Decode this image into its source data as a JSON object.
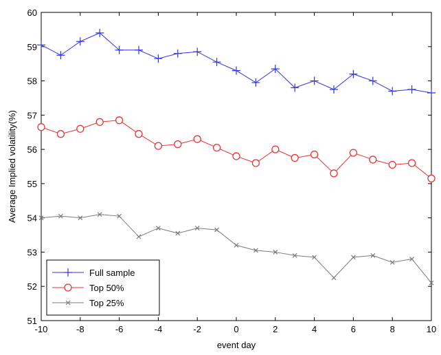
{
  "chart_data": {
    "type": "line",
    "title": "",
    "xlabel": "event day",
    "ylabel": "Average Implied volatility(%)",
    "xlim": [
      -10,
      10
    ],
    "ylim": [
      51,
      60
    ],
    "xticks": [
      -10,
      -8,
      -6,
      -4,
      -2,
      0,
      2,
      4,
      6,
      8,
      10
    ],
    "xtick_labels": [
      "-10",
      "-8",
      "-6",
      "-4",
      "-2",
      "0",
      "2",
      "4",
      "6",
      "8",
      "10"
    ],
    "yticks": [
      51,
      52,
      53,
      54,
      55,
      56,
      57,
      58,
      59,
      60
    ],
    "ytick_labels": [
      "51",
      "52",
      "53",
      "54",
      "55",
      "56",
      "57",
      "58",
      "59",
      "60"
    ],
    "grid": false,
    "legend_position": "bottom-left",
    "x": [
      -10,
      -9,
      -8,
      -7,
      -6,
      -5,
      -4,
      -3,
      -2,
      -1,
      0,
      1,
      2,
      3,
      4,
      5,
      6,
      7,
      8,
      9,
      10
    ],
    "series": [
      {
        "name": "Full sample",
        "color": "#2f33e6",
        "marker": "plus",
        "values": [
          59.05,
          58.75,
          59.15,
          59.4,
          58.9,
          58.9,
          58.65,
          58.8,
          58.85,
          58.55,
          58.3,
          57.95,
          58.35,
          57.8,
          58.0,
          57.75,
          58.2,
          58.0,
          57.7,
          57.75,
          57.65
        ]
      },
      {
        "name": "Top 50%",
        "color": "#e83333",
        "marker": "circle",
        "values": [
          56.65,
          56.45,
          56.6,
          56.8,
          56.85,
          56.45,
          56.1,
          56.15,
          56.3,
          56.05,
          55.8,
          55.6,
          56.0,
          55.75,
          55.85,
          55.3,
          55.9,
          55.7,
          55.55,
          55.6,
          55.15
        ]
      },
      {
        "name": "Top 25%",
        "color": "#7a7a7a",
        "marker": "x",
        "values": [
          54.0,
          54.05,
          54.0,
          54.1,
          54.05,
          53.45,
          53.7,
          53.55,
          53.7,
          53.65,
          53.2,
          53.05,
          53.0,
          52.9,
          52.85,
          52.25,
          52.85,
          52.9,
          52.7,
          52.8,
          52.1
        ]
      }
    ]
  }
}
